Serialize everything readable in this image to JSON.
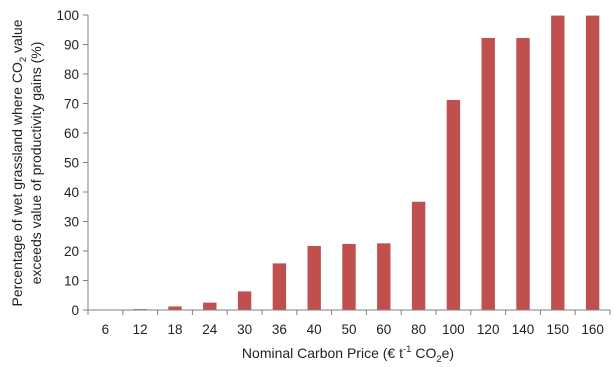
{
  "chart_data": {
    "type": "bar",
    "title": "",
    "categories": [
      "6",
      "12",
      "18",
      "24",
      "30",
      "36",
      "40",
      "50",
      "60",
      "80",
      "100",
      "120",
      "140",
      "150",
      "160"
    ],
    "values": [
      0,
      0.3,
      1.2,
      2.5,
      6.3,
      15.8,
      21.7,
      22.4,
      22.6,
      36.7,
      71.2,
      92.2,
      92.2,
      99.8,
      99.8
    ],
    "xlabel": {
      "pre": "Nominal Carbon Price (€ t",
      "sup": "-1",
      "mid": " CO",
      "sub": "2",
      "post": "e)"
    },
    "ylabel": {
      "line1_pre": "Percentage of wet grassland where CO",
      "line1_sub": "2",
      "line1_post": " value",
      "line2": "exceeds value of productivity gains (%)"
    },
    "ylim": [
      0,
      100
    ],
    "yticks": [
      0,
      10,
      20,
      30,
      40,
      50,
      60,
      70,
      80,
      90,
      100
    ],
    "grid": false,
    "legend": "none",
    "bar_color": "#c0504d",
    "axis_color": "#7f7f7f"
  }
}
